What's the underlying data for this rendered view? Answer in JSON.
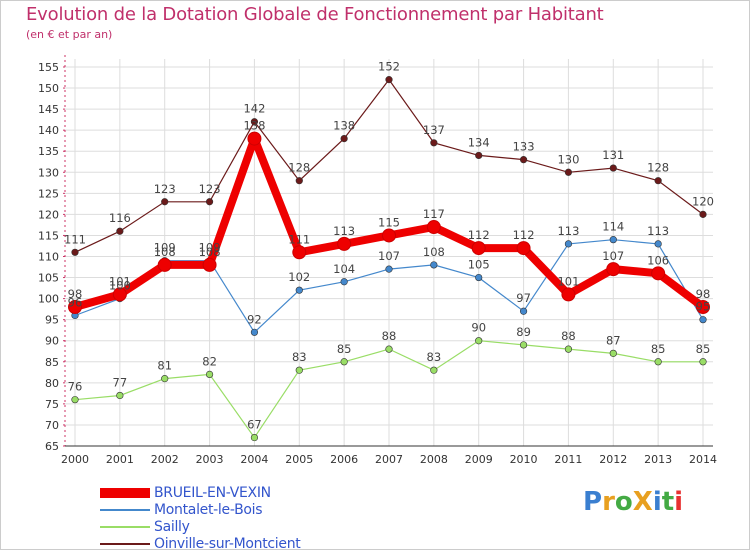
{
  "title": "Evolution de la Dotation Globale de Fonctionnement par Habitant",
  "subtitle": "(en € et par an)",
  "logo": {
    "text": "ProXiti",
    "colors": [
      "#3a7fd0",
      "#e8a020",
      "#44aa44",
      "#e8a020",
      "#3a7fd0",
      "#44aa44",
      "#e83030"
    ]
  },
  "chart_data": {
    "type": "line",
    "title": "Evolution de la Dotation Globale de Fonctionnement par Habitant",
    "subtitle": "(en € et par an)",
    "xlabel": "",
    "ylabel": "",
    "x": [
      2000,
      2001,
      2002,
      2003,
      2004,
      2005,
      2006,
      2007,
      2008,
      2009,
      2010,
      2011,
      2012,
      2013,
      2014
    ],
    "ylim": [
      65,
      155
    ],
    "yticks": [
      65,
      70,
      75,
      80,
      85,
      90,
      95,
      100,
      105,
      110,
      115,
      120,
      125,
      130,
      135,
      140,
      145,
      150,
      155
    ],
    "grid": true,
    "legend_position": "bottom-left",
    "series": [
      {
        "name": "Oinville-sur-Montcient",
        "color": "#6b1a1a",
        "emphasis": false,
        "values": [
          111,
          116,
          123,
          123,
          142,
          128,
          138,
          152,
          137,
          134,
          133,
          130,
          131,
          128,
          120
        ]
      },
      {
        "name": "Sailly",
        "color": "#99dd66",
        "emphasis": false,
        "values": [
          76,
          77,
          81,
          82,
          67,
          83,
          85,
          88,
          83,
          90,
          89,
          88,
          87,
          85,
          85
        ]
      },
      {
        "name": "Montalet-le-Bois",
        "color": "#4488cc",
        "emphasis": false,
        "values": [
          96,
          100,
          109,
          109,
          92,
          102,
          104,
          107,
          108,
          105,
          97,
          113,
          114,
          113,
          95
        ]
      },
      {
        "name": "BRUEIL-EN-VEXIN",
        "color": "#ee0000",
        "emphasis": true,
        "values": [
          98,
          101,
          108,
          108,
          138,
          111,
          113,
          115,
          117,
          112,
          112,
          101,
          107,
          106,
          98
        ]
      }
    ],
    "legend": [
      "BRUEIL-EN-VEXIN",
      "Montalet-le-Bois",
      "Sailly",
      "Oinville-sur-Montcient"
    ]
  }
}
